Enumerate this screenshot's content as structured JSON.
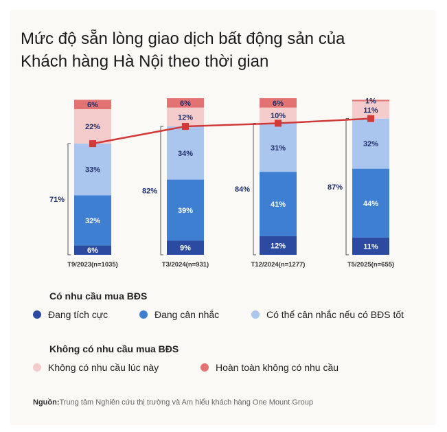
{
  "title": "Mức độ sẵn lòng giao dịch bất động sản của\nKhách hàng Hà Nội theo thời gian",
  "colors": {
    "dang_tich_cuc": "#2b4aa0",
    "dang_can_nhac": "#3f7fd1",
    "co_the_can_nhac": "#aac6ee",
    "khong_co_nhu_cau_luc_nay": "#f4cccc",
    "hoan_toan_khong": "#e37272",
    "line": "#d23a3a"
  },
  "chart_data": {
    "type": "bar",
    "stacked": true,
    "categories": [
      "T9/2023(n=1035)",
      "T3/2024(n=931)",
      "T12/2024(n=1277)",
      "T5/2025(n=655)"
    ],
    "series": [
      {
        "name": "Đang tích cực",
        "values": [
          6,
          9,
          12,
          11
        ],
        "labels": [
          "6%",
          "9%",
          "12%",
          "11%"
        ]
      },
      {
        "name": "Đang cân nhắc",
        "values": [
          32,
          39,
          41,
          44
        ],
        "labels": [
          "32%",
          "39%",
          "41%",
          "44%"
        ]
      },
      {
        "name": "Có thể cân nhắc nếu có BĐS tốt",
        "values": [
          33,
          34,
          31,
          32
        ],
        "labels": [
          "33%",
          "34%",
          "31%",
          "32%"
        ]
      },
      {
        "name": "Không có nhu cầu lúc này",
        "values": [
          22,
          12,
          10,
          11
        ],
        "labels": [
          "22%",
          "12%",
          "10%",
          "11%"
        ]
      },
      {
        "name": "Hoàn toàn không có nhu cầu",
        "values": [
          6,
          6,
          6,
          1
        ],
        "labels": [
          "6%",
          "6%",
          "6%",
          "1%"
        ]
      }
    ],
    "totals": {
      "values": [
        71,
        82,
        84,
        87
      ],
      "labels": [
        "71%",
        "82%",
        "84%",
        "87%"
      ]
    },
    "line_series": {
      "type": "line",
      "values": [
        71,
        82,
        84,
        87
      ]
    }
  },
  "legend": {
    "group1_title": "Có nhu cầu mua BĐS",
    "group1_items": [
      "Đang tích cực",
      "Đang cân nhắc",
      "Có thể cân nhắc nếu có BĐS tốt"
    ],
    "group2_title": "Không có nhu cầu mua BĐS",
    "group2_items": [
      "Không có nhu cầu lúc này",
      "Hoàn toàn không có nhu cầu"
    ]
  },
  "source": {
    "label": "Nguồn:",
    "text": "Trung tâm Nghiên cứu thị trường và Am hiểu khách hàng One Mount Group"
  }
}
